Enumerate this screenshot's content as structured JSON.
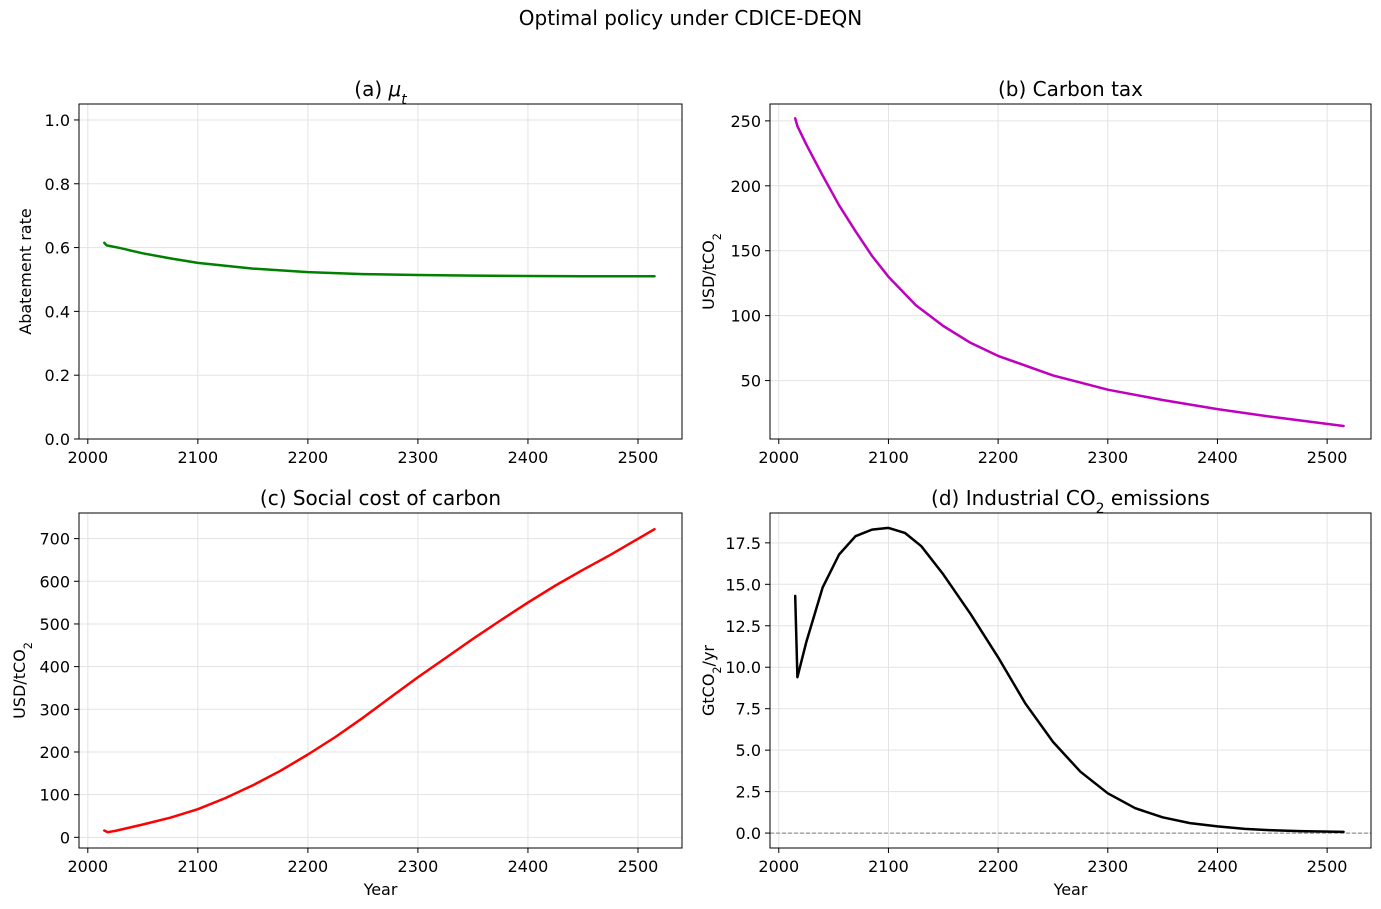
{
  "figure": {
    "suptitle": "Optimal policy under CDICE-DEQN"
  },
  "chart_data": [
    {
      "id": "a",
      "type": "line",
      "title": "(a) μ",
      "title_sub": "t",
      "title_italic": true,
      "xlabel": "",
      "ylabel": "Abatement rate",
      "xlim": [
        1992,
        2540
      ],
      "ylim": [
        0.0,
        1.05
      ],
      "xticks": [
        2000,
        2100,
        2200,
        2300,
        2400,
        2500
      ],
      "yticks": [
        0.0,
        0.2,
        0.4,
        0.6,
        0.8,
        1.0
      ],
      "ytick_labels": [
        "0.0",
        "0.2",
        "0.4",
        "0.6",
        "0.8",
        "1.0"
      ],
      "grid": true,
      "color": "#008000",
      "series": [
        {
          "x": [
            2015,
            2017,
            2020,
            2030,
            2040,
            2050,
            2075,
            2100,
            2150,
            2200,
            2250,
            2300,
            2350,
            2400,
            2450,
            2515
          ],
          "y": [
            0.615,
            0.607,
            0.605,
            0.598,
            0.59,
            0.582,
            0.566,
            0.552,
            0.534,
            0.523,
            0.517,
            0.514,
            0.512,
            0.511,
            0.51,
            0.51
          ]
        }
      ]
    },
    {
      "id": "b",
      "type": "line",
      "title": "(b) Carbon tax",
      "xlabel": "",
      "ylabel": "USD/tCO",
      "ylabel_sub": "2",
      "xlim": [
        1992,
        2540
      ],
      "ylim": [
        5,
        263
      ],
      "xticks": [
        2000,
        2100,
        2200,
        2300,
        2400,
        2500
      ],
      "yticks": [
        50,
        100,
        150,
        200,
        250
      ],
      "ytick_labels": [
        "50",
        "100",
        "150",
        "200",
        "250"
      ],
      "grid": true,
      "color": "#bf00bf",
      "series": [
        {
          "x": [
            2015,
            2017,
            2025,
            2040,
            2055,
            2070,
            2085,
            2100,
            2125,
            2150,
            2175,
            2200,
            2250,
            2300,
            2350,
            2400,
            2450,
            2515
          ],
          "y": [
            252,
            246,
            232,
            208,
            185,
            165,
            146,
            130,
            108,
            92,
            79,
            69,
            54,
            43,
            35,
            28,
            22,
            15
          ]
        }
      ]
    },
    {
      "id": "c",
      "type": "line",
      "title": "(c) Social cost of carbon",
      "xlabel": "Year",
      "ylabel": "USD/tCO",
      "ylabel_sub": "2",
      "xlim": [
        1992,
        2540
      ],
      "ylim": [
        -25,
        760
      ],
      "xticks": [
        2000,
        2100,
        2200,
        2300,
        2400,
        2500
      ],
      "yticks": [
        0,
        100,
        200,
        300,
        400,
        500,
        600,
        700
      ],
      "ytick_labels": [
        "0",
        "100",
        "200",
        "300",
        "400",
        "500",
        "600",
        "700"
      ],
      "grid": true,
      "color": "#ff0000",
      "series": [
        {
          "x": [
            2015,
            2018,
            2025,
            2050,
            2075,
            2100,
            2125,
            2150,
            2175,
            2200,
            2225,
            2250,
            2275,
            2300,
            2325,
            2350,
            2375,
            2400,
            2425,
            2450,
            2475,
            2515
          ],
          "y": [
            16,
            12,
            15,
            30,
            46,
            66,
            92,
            122,
            156,
            194,
            235,
            280,
            328,
            375,
            420,
            465,
            508,
            550,
            590,
            627,
            662,
            722
          ]
        }
      ]
    },
    {
      "id": "d",
      "type": "line",
      "title": "(d) Industrial CO",
      "title_sub": "2",
      "title_suffix": " emissions",
      "xlabel": "Year",
      "ylabel": "GtCO",
      "ylabel_sub": "2",
      "ylabel_suffix": "/yr",
      "xlim": [
        1992,
        2540
      ],
      "ylim": [
        -0.9,
        19.3
      ],
      "xticks": [
        2000,
        2100,
        2200,
        2300,
        2400,
        2500
      ],
      "yticks": [
        0.0,
        2.5,
        5.0,
        7.5,
        10.0,
        12.5,
        15.0,
        17.5
      ],
      "ytick_labels": [
        "0.0",
        "2.5",
        "5.0",
        "7.5",
        "10.0",
        "12.5",
        "15.0",
        "17.5"
      ],
      "grid": true,
      "color": "#000000",
      "hline": {
        "y": 0.0,
        "color": "#808080",
        "style": "dashed"
      },
      "series": [
        {
          "x": [
            2015,
            2017,
            2025,
            2040,
            2055,
            2070,
            2085,
            2100,
            2115,
            2130,
            2150,
            2175,
            2200,
            2225,
            2250,
            2275,
            2300,
            2325,
            2350,
            2375,
            2400,
            2425,
            2450,
            2475,
            2515
          ],
          "y": [
            14.3,
            9.4,
            11.5,
            14.8,
            16.8,
            17.9,
            18.3,
            18.4,
            18.1,
            17.3,
            15.6,
            13.2,
            10.6,
            7.8,
            5.5,
            3.7,
            2.4,
            1.5,
            0.95,
            0.6,
            0.4,
            0.25,
            0.17,
            0.12,
            0.07
          ]
        }
      ]
    }
  ]
}
